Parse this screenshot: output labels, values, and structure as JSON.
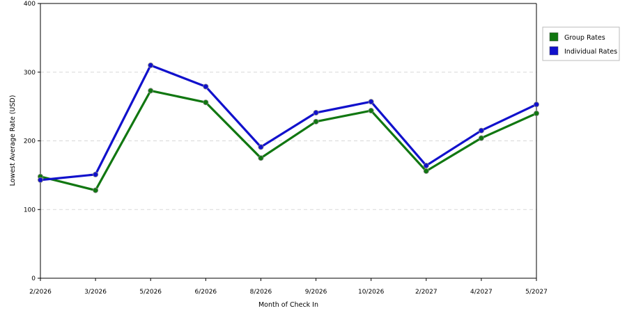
{
  "chart_data": {
    "type": "line",
    "title": "",
    "xlabel": "Month of Check In",
    "ylabel": "Lowest Average Rate (USD)",
    "categories": [
      "2/2026",
      "3/2026",
      "5/2026",
      "6/2026",
      "8/2026",
      "9/2026",
      "10/2026",
      "2/2027",
      "4/2027",
      "5/2027"
    ],
    "ylim": [
      0,
      400
    ],
    "yticks": [
      0,
      100,
      200,
      300,
      400
    ],
    "grid": "horizontal dashed",
    "legend_position": "right",
    "series": [
      {
        "name": "Group Rates",
        "color": "#117711",
        "values": [
          148,
          128,
          273,
          256,
          175,
          228,
          244,
          156,
          204,
          240
        ]
      },
      {
        "name": "Individual Rates",
        "color": "#1111cc",
        "values": [
          143,
          151,
          310,
          279,
          191,
          241,
          257,
          164,
          215,
          253
        ]
      }
    ]
  }
}
